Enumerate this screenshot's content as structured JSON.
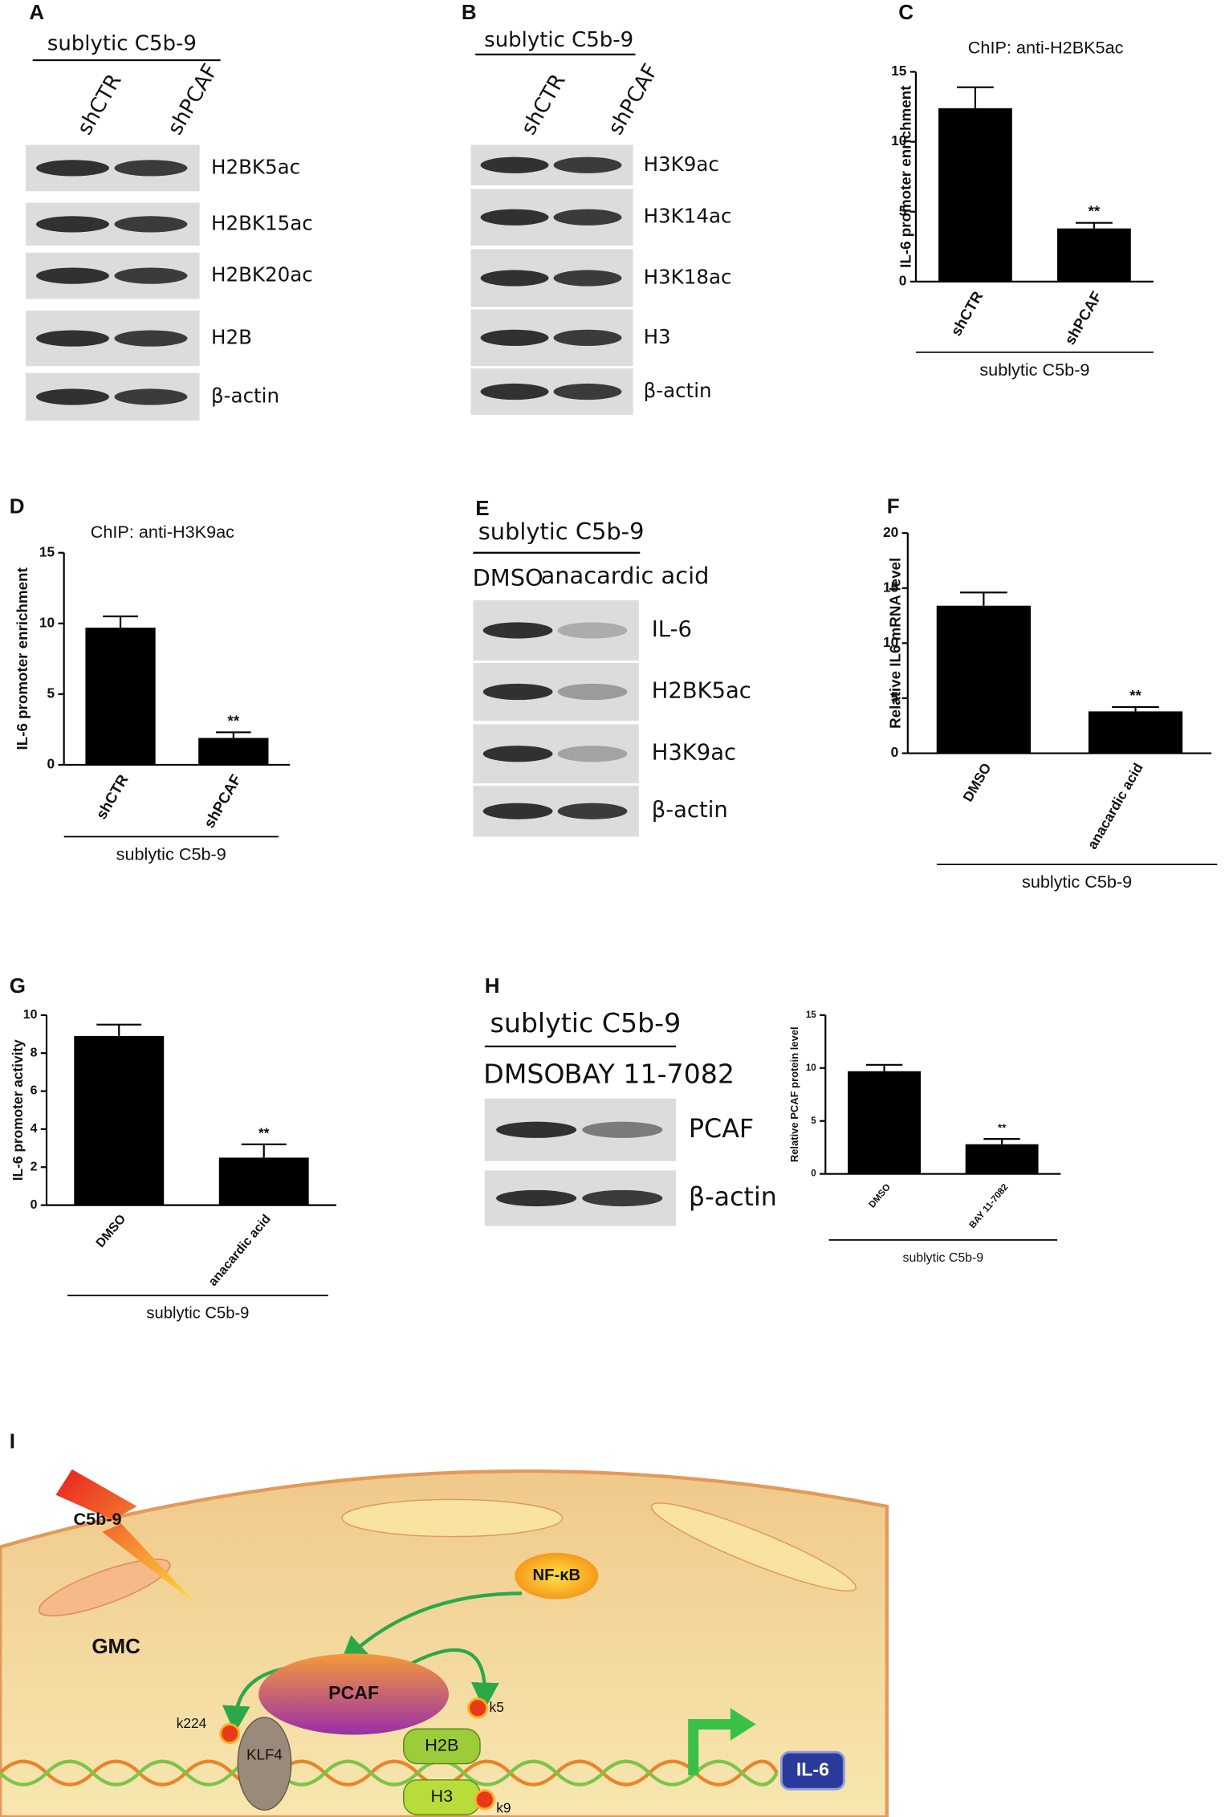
{
  "chart_data": [
    {
      "type": "bar",
      "panel": "C",
      "title": "ChIP: anti-H2BK5ac",
      "y_label": "IL-6 promoter enrichment",
      "categories": [
        "shCTR",
        "shPCAF"
      ],
      "values": [
        12.4,
        3.8
      ],
      "errors": [
        1.5,
        0.4
      ],
      "color": "#000000",
      "ylim": [
        0,
        15
      ],
      "yticks": [
        0,
        5,
        10,
        15
      ],
      "group_label": "sublytic C5b-9",
      "annotation": "**"
    },
    {
      "type": "bar",
      "panel": "D",
      "title": "ChIP: anti-H3K9ac",
      "y_label": "IL-6 promoter enrichment",
      "categories": [
        "shCTR",
        "shPCAF"
      ],
      "values": [
        9.7,
        1.9
      ],
      "errors": [
        0.8,
        0.4
      ],
      "color": "#000000",
      "ylim": [
        0,
        15
      ],
      "yticks": [
        0,
        5,
        10,
        15
      ],
      "group_label": "sublytic C5b-9",
      "annotation": "**"
    },
    {
      "type": "bar",
      "panel": "F",
      "y_label": "Relative IL6 mRNA level",
      "categories": [
        "DMSO",
        "anacardic acid"
      ],
      "values": [
        13.4,
        3.8
      ],
      "errors": [
        1.2,
        0.4
      ],
      "color": "#000000",
      "ylim": [
        0,
        20
      ],
      "yticks": [
        0,
        5,
        10,
        15,
        20
      ],
      "group_label": "sublytic C5b-9",
      "annotation": "**"
    },
    {
      "type": "bar",
      "panel": "G",
      "y_label": "IL-6 promoter activity",
      "categories": [
        "DMSO",
        "anacardic acid"
      ],
      "values": [
        8.9,
        2.5
      ],
      "errors": [
        0.6,
        0.7
      ],
      "color": "#000000",
      "ylim": [
        0,
        10
      ],
      "yticks": [
        0,
        2,
        4,
        6,
        8,
        10
      ],
      "group_label": "sublytic C5b-9",
      "annotation": "**"
    },
    {
      "type": "bar",
      "y_label": "Relative PCAF protein level",
      "categories": [
        "DMSO",
        "BAY 11-7082"
      ],
      "values": [
        9.7,
        2.8
      ],
      "errors": [
        0.6,
        0.5
      ],
      "color": "#000000",
      "ylim": [
        0,
        15
      ],
      "yticks": [
        0,
        5,
        10,
        15
      ],
      "group_label": "sublytic C5b-9",
      "annotation": "**"
    }
  ],
  "blots": [
    {
      "panel": "A",
      "header": "sublytic C5b-9",
      "lanes": [
        "shCTR",
        "shPCAF"
      ],
      "rows": [
        "H2BK5ac",
        "H2BK15ac",
        "H2BK20ac",
        "H2B",
        "β-actin"
      ]
    },
    {
      "panel": "B",
      "header": "sublytic C5b-9",
      "lanes": [
        "shCTR",
        "shPCAF"
      ],
      "rows": [
        "H3K9ac",
        "H3K14ac",
        "H3K18ac",
        "H3",
        "β-actin"
      ]
    },
    {
      "panel": "E",
      "header": "sublytic C5b-9",
      "lanes": [
        "DMSO",
        "anacardic acid"
      ],
      "rows": [
        "IL-6",
        "H2BK5ac",
        "H3K9ac",
        "β-actin"
      ]
    },
    {
      "panel": "H",
      "header": "sublytic C5b-9",
      "lanes": [
        "DMSO",
        "BAY 11-7082"
      ],
      "rows": [
        "PCAF",
        "β-actin"
      ]
    }
  ],
  "diagram": {
    "panel": "I",
    "labels": {
      "stimulus": "C5b-9",
      "nfkb": "NF-κB",
      "cell": "GMC",
      "pcaf": "PCAF",
      "klf4": "KLF4",
      "k224": "k224",
      "k5": "k5",
      "h2b": "H2B",
      "h3": "H3",
      "k9": "k9",
      "gene": "IL-6"
    }
  }
}
